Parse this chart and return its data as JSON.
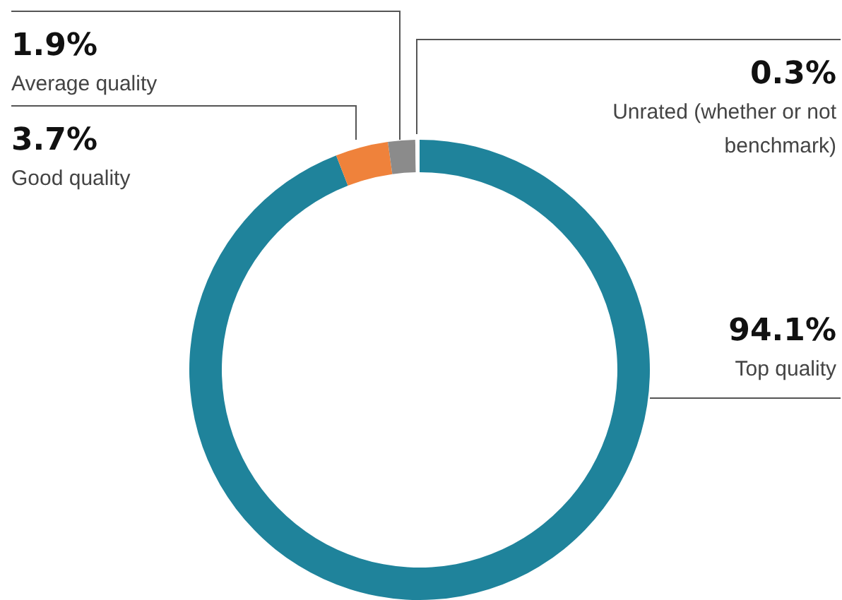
{
  "chart_data": {
    "type": "donut",
    "categories": [
      "Top quality",
      "Good quality",
      "Average quality",
      "Unrated (whether or not benchmark)"
    ],
    "values": [
      94.1,
      3.7,
      1.9,
      0.3
    ],
    "colors": [
      "#1f839b",
      "#ef823b",
      "#8b8b8b",
      "#ffffff"
    ],
    "value_labels": [
      "94.1%",
      "3.7%",
      "1.9%",
      "0.3%"
    ]
  }
}
